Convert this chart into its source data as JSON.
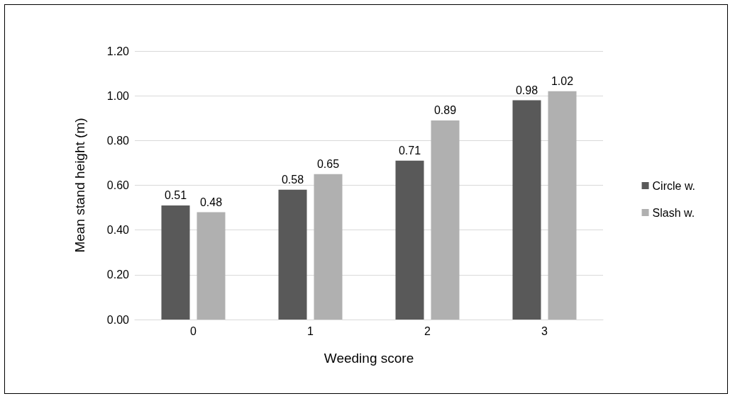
{
  "chart_data": {
    "type": "bar",
    "xlabel": "Weeding score",
    "ylabel": "Mean stand height (m)",
    "categories": [
      "0",
      "1",
      "2",
      "3"
    ],
    "series": [
      {
        "name": "Circle w.",
        "color": "#595959",
        "values": [
          0.51,
          0.58,
          0.71,
          0.98
        ]
      },
      {
        "name": "Slash w.",
        "color": "#b0b0b0",
        "values": [
          0.48,
          0.65,
          0.89,
          1.02
        ]
      }
    ],
    "ylim": [
      0,
      1.2
    ],
    "yticks": [
      {
        "value": 0,
        "label": "0.00"
      },
      {
        "value": 0.2,
        "label": "0.20"
      },
      {
        "value": 0.4,
        "label": "0.40"
      },
      {
        "value": 0.6,
        "label": "0.60"
      },
      {
        "value": 0.8,
        "label": "0.80"
      },
      {
        "value": 1,
        "label": "1.00"
      },
      {
        "value": 1.2,
        "label": "1.20"
      }
    ],
    "grid": "y",
    "legend": "right",
    "data_labels": true
  }
}
